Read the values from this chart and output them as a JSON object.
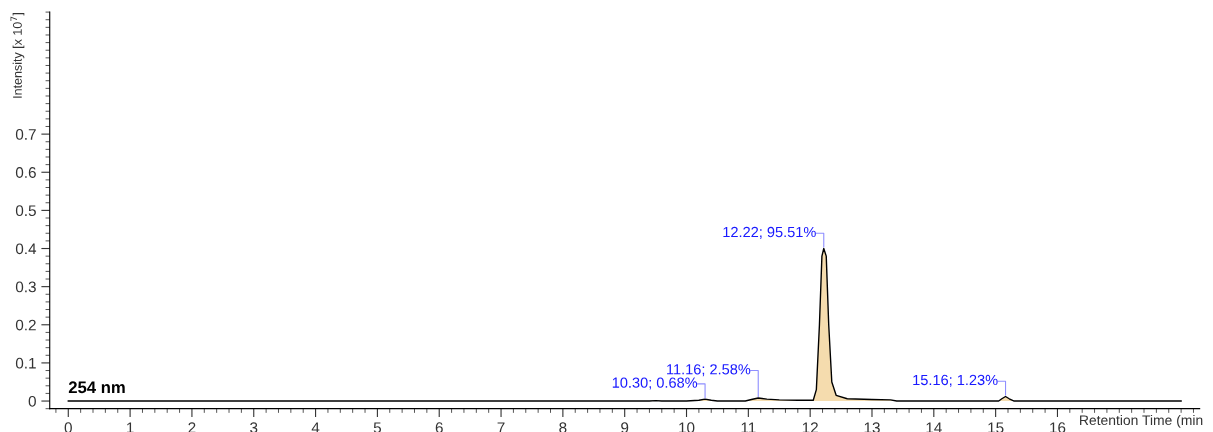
{
  "chart_data": {
    "type": "area",
    "xlabel": "Retention Time (min",
    "ylabel": "Intensity [x 10$^{7}$]",
    "xlim": [
      -0.3,
      18.3
    ],
    "xticks": [
      0,
      1,
      2,
      3,
      4,
      5,
      6,
      7,
      8,
      9,
      10,
      11,
      12,
      13,
      14,
      15,
      16
    ],
    "ylim": [
      -0.02,
      1.02
    ],
    "yticks": [
      0,
      0.1,
      0.2,
      0.3,
      0.4,
      0.5,
      0.6,
      0.7
    ],
    "grid": false,
    "series": [
      {
        "color": "#f5dcae",
        "x": [
          0,
          9.4,
          9.5,
          9.6,
          10.0,
          10.2,
          10.3,
          10.4,
          10.5,
          10.95,
          11.05,
          11.16,
          11.3,
          11.5,
          11.8,
          12.05,
          12.1,
          12.15,
          12.19,
          12.22,
          12.26,
          12.3,
          12.35,
          12.42,
          12.6,
          13.0,
          13.3,
          13.4,
          15.05,
          15.1,
          15.16,
          15.22,
          15.3,
          18.0
        ],
        "values": [
          0,
          0,
          0.001,
          0,
          0,
          0.002,
          0.005,
          0.002,
          0,
          0,
          0.004,
          0.008,
          0.005,
          0.003,
          0.002,
          0.002,
          0.03,
          0.2,
          0.38,
          0.4,
          0.38,
          0.2,
          0.05,
          0.015,
          0.006,
          0.004,
          0.003,
          0,
          0,
          0.006,
          0.012,
          0.006,
          0,
          0
        ]
      }
    ],
    "annotations": [
      "254 nm",
      {
        "text": "10.30; 0.68%",
        "x": 10.3,
        "y": 0.005
      },
      {
        "text": "11.16; 2.58%",
        "x": 11.16,
        "y": 0.008
      },
      {
        "text": "12.22; 95.51%",
        "x": 12.22,
        "y": 0.4
      },
      {
        "text": "15.16; 1.23%",
        "x": 15.16,
        "y": 0.012
      }
    ]
  }
}
